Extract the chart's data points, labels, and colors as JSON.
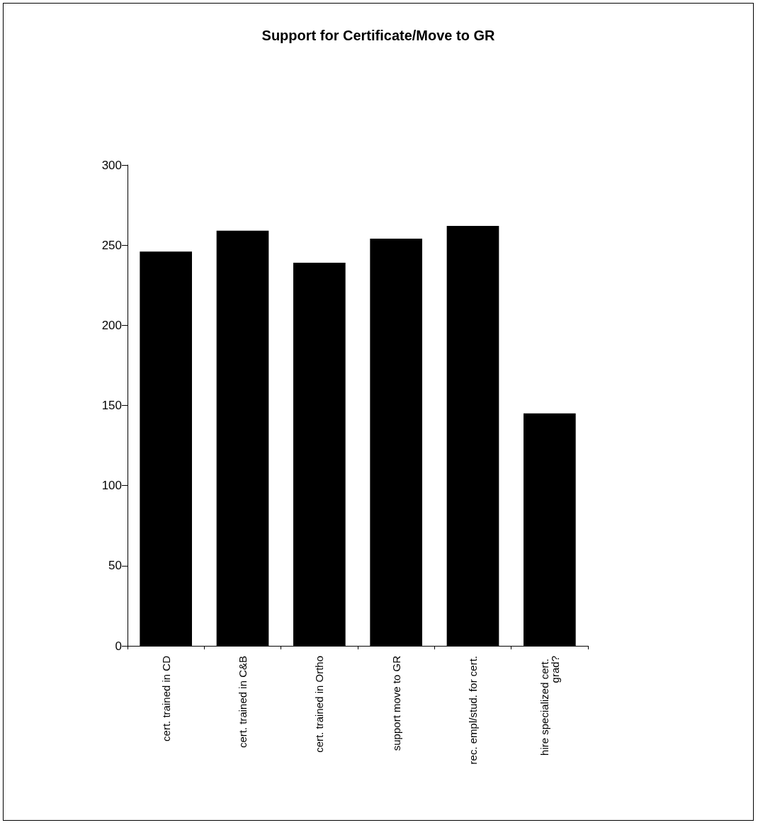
{
  "chart_data": {
    "type": "bar",
    "title": "Support for Certificate/Move to GR",
    "categories": [
      "cert. trained in CD",
      "cert. trained in C&B",
      "cert. trained in Ortho",
      "support move to GR",
      "rec. empl/stud. for cert.",
      "hire specialized cert. grad?"
    ],
    "values": [
      246,
      259,
      239,
      254,
      262,
      145
    ],
    "color": "#000000",
    "ylim": [
      0,
      300
    ],
    "yticks": [
      0,
      50,
      100,
      150,
      200,
      250,
      300
    ],
    "grid": false
  }
}
